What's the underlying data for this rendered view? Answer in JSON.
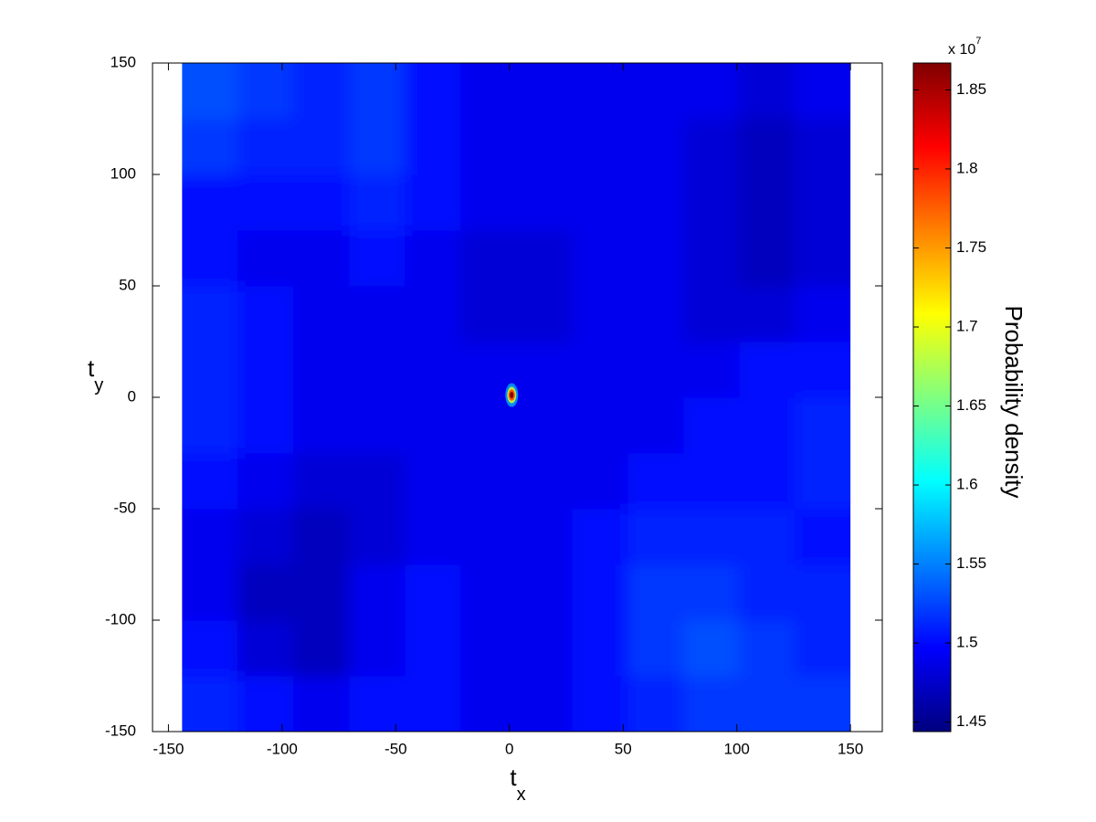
{
  "chart_data": {
    "type": "heatmap",
    "xlabel": {
      "main": "t",
      "sub": "x"
    },
    "ylabel": {
      "main": "t",
      "sub": "y"
    },
    "colorbar_label": "Probability density",
    "colorbar_multiplier": {
      "base": "x 10",
      "exponent": "7"
    },
    "colormap": "jet",
    "clim": [
      1.444,
      1.867
    ],
    "cticks": [
      1.45,
      1.5,
      1.55,
      1.6,
      1.65,
      1.7,
      1.75,
      1.8,
      1.85
    ],
    "xlim": [
      -157,
      164
    ],
    "ylim": [
      -150,
      150
    ],
    "xticks": [
      -150,
      -100,
      -50,
      0,
      50,
      100,
      150
    ],
    "yticks": [
      -150,
      -100,
      -50,
      0,
      50,
      100,
      150
    ],
    "xbins": [
      -144,
      -119.5,
      -95,
      -70.5,
      -46,
      -21.5,
      3,
      27.5,
      52,
      76.5,
      101,
      125.5,
      150
    ],
    "ybins": [
      -150,
      -125,
      -100,
      -75,
      -50,
      -25,
      0,
      25,
      50,
      75,
      100,
      125,
      150
    ],
    "z": [
      [
        1.51,
        1.5,
        1.49,
        1.5,
        1.5,
        1.49,
        1.49,
        1.5,
        1.51,
        1.52,
        1.52,
        1.52
      ],
      [
        1.5,
        1.48,
        1.47,
        1.49,
        1.5,
        1.49,
        1.49,
        1.5,
        1.52,
        1.53,
        1.52,
        1.51
      ],
      [
        1.49,
        1.47,
        1.47,
        1.49,
        1.5,
        1.49,
        1.49,
        1.5,
        1.52,
        1.52,
        1.51,
        1.51
      ],
      [
        1.49,
        1.48,
        1.47,
        1.48,
        1.49,
        1.49,
        1.49,
        1.5,
        1.51,
        1.51,
        1.51,
        1.5
      ],
      [
        1.5,
        1.49,
        1.48,
        1.48,
        1.49,
        1.49,
        1.49,
        1.49,
        1.5,
        1.5,
        1.5,
        1.51
      ],
      [
        1.51,
        1.5,
        1.49,
        1.49,
        1.49,
        1.49,
        1.49,
        1.49,
        1.49,
        1.5,
        1.5,
        1.51
      ],
      [
        1.51,
        1.5,
        1.49,
        1.49,
        1.49,
        1.49,
        1.49,
        1.49,
        1.49,
        1.49,
        1.5,
        1.5
      ],
      [
        1.51,
        1.5,
        1.49,
        1.49,
        1.49,
        1.48,
        1.48,
        1.49,
        1.49,
        1.48,
        1.48,
        1.49
      ],
      [
        1.5,
        1.49,
        1.49,
        1.5,
        1.49,
        1.48,
        1.48,
        1.49,
        1.49,
        1.48,
        1.47,
        1.48
      ],
      [
        1.5,
        1.5,
        1.5,
        1.51,
        1.5,
        1.49,
        1.49,
        1.49,
        1.49,
        1.48,
        1.47,
        1.48
      ],
      [
        1.52,
        1.51,
        1.51,
        1.52,
        1.5,
        1.49,
        1.49,
        1.49,
        1.49,
        1.48,
        1.47,
        1.48
      ],
      [
        1.53,
        1.52,
        1.51,
        1.52,
        1.5,
        1.49,
        1.49,
        1.49,
        1.49,
        1.49,
        1.48,
        1.49
      ]
    ],
    "peak": {
      "x": 1,
      "y": 1,
      "value": 1.865
    }
  }
}
